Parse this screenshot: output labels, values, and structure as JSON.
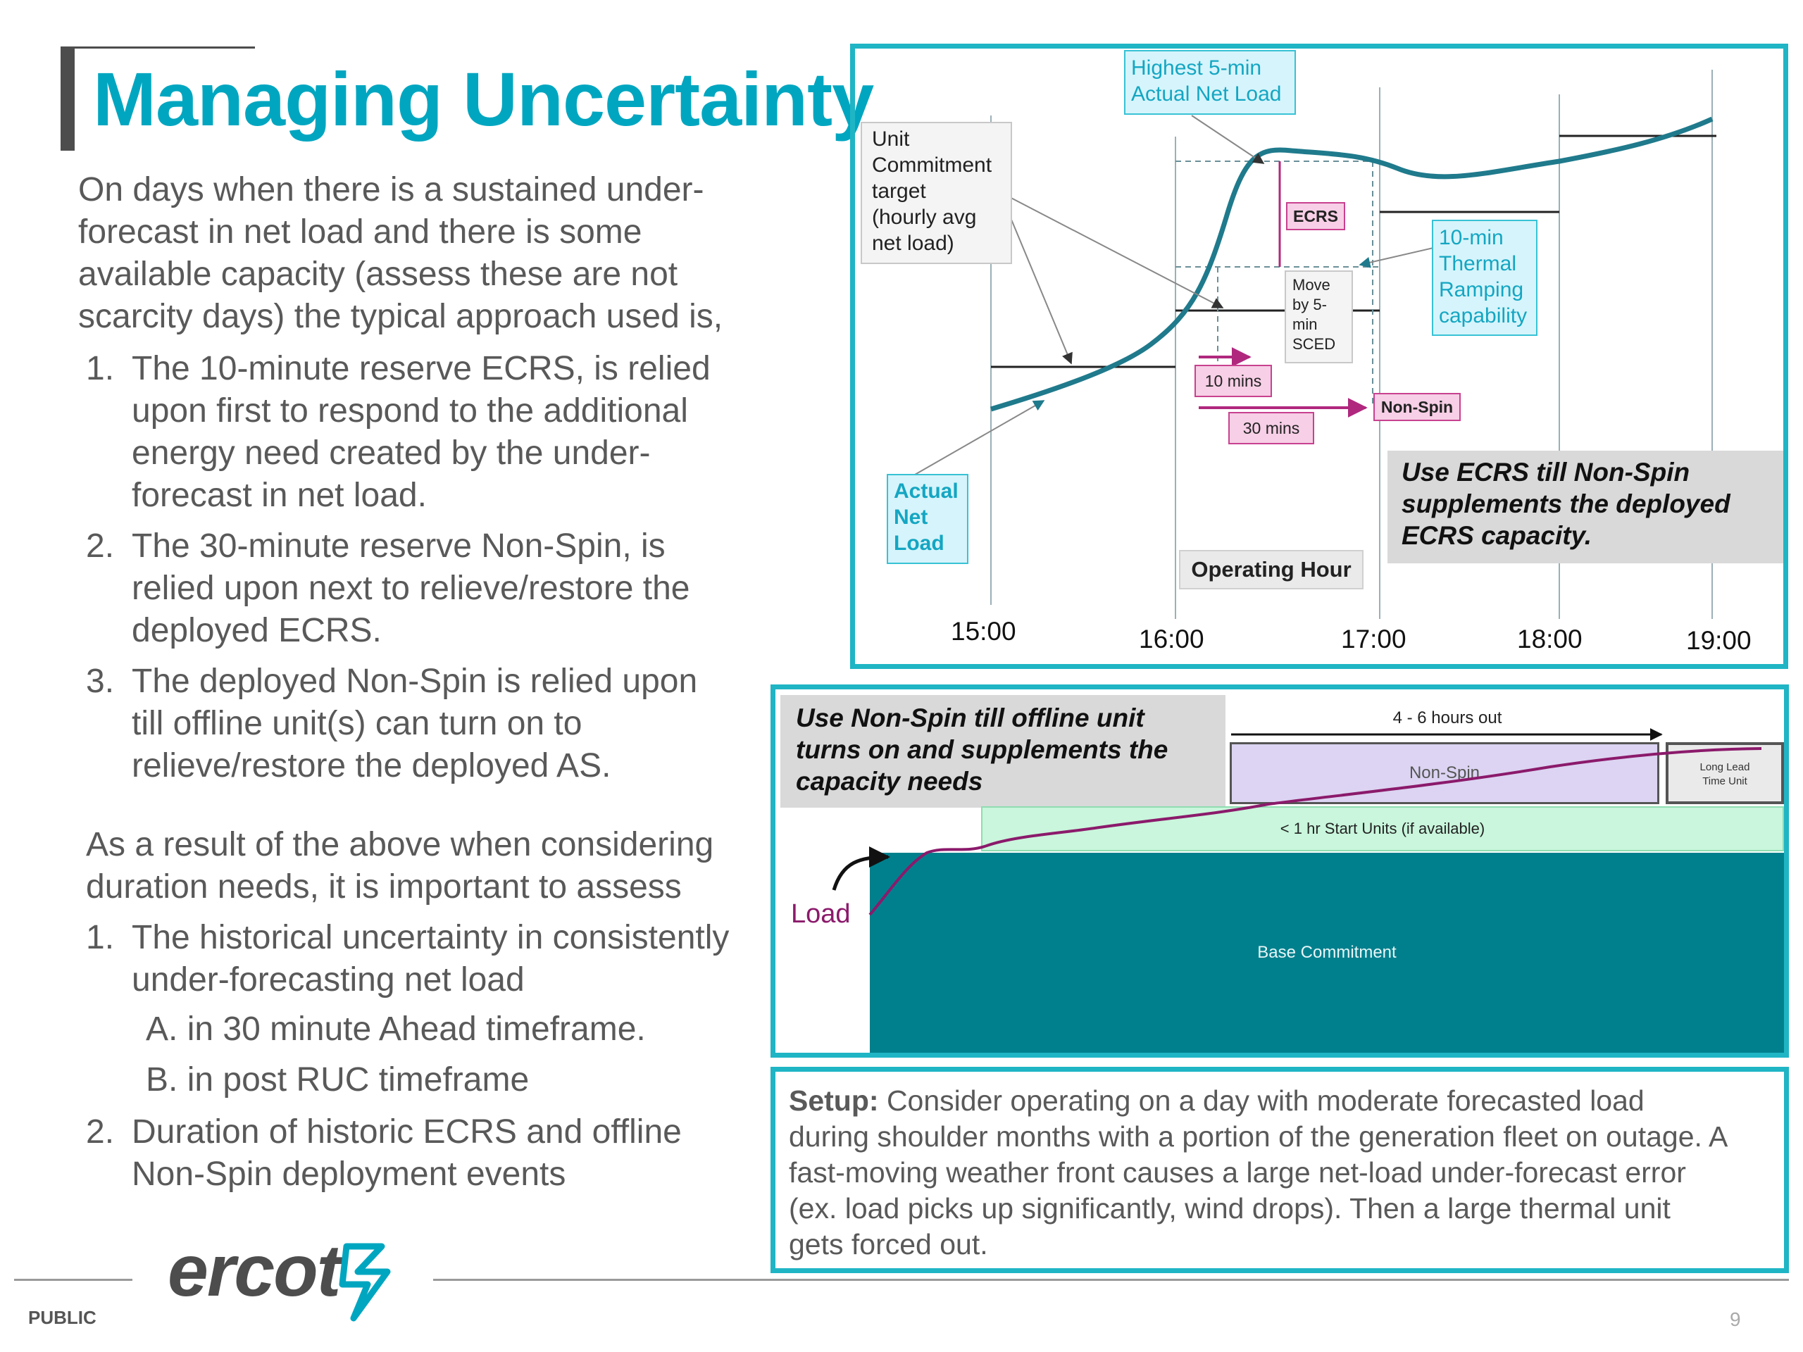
{
  "title": "Managing Uncertainty",
  "intro_lines": [
    "On days when there is a sustained under-",
    "forecast in net load and there is some",
    "available capacity (assess these are not",
    "scarcity days) the typical approach used is,"
  ],
  "list1": [
    {
      "num": "1.",
      "lines": [
        "The 10-minute reserve ECRS, is relied",
        "upon first to respond to the additional",
        "energy need created by the under-",
        "forecast in net load."
      ]
    },
    {
      "num": "2.",
      "lines": [
        "The 30-minute reserve Non-Spin, is",
        "relied upon next to relieve/restore the",
        "deployed ECRS."
      ]
    },
    {
      "num": "3.",
      "lines": [
        "The deployed Non-Spin is relied upon",
        "till offline unit(s) can turn on to",
        "relieve/restore the deployed AS."
      ]
    }
  ],
  "result_lines": [
    "As a result of the above when considering",
    "duration needs, it is important to assess"
  ],
  "list2_item1": {
    "num": "1.",
    "lines": [
      "The historical uncertainty in consistently",
      "under-forecasting net load"
    ]
  },
  "list2_sub": [
    {
      "num": "A.",
      "text": "in 30 minute Ahead timeframe."
    },
    {
      "num": "B.",
      "text": "in post RUC timeframe"
    }
  ],
  "list2_item2": {
    "num": "2.",
    "lines": [
      "Duration of historic ECRS and offline",
      "Non-Spin deployment events"
    ]
  },
  "top_chart": {
    "ticks": [
      "15:00",
      "16:00",
      "17:00",
      "18:00",
      "19:00"
    ],
    "labels": {
      "highest": [
        "Highest 5-min",
        "Actual Net Load"
      ],
      "unit_commitment": [
        "Unit",
        "Commitment",
        "target",
        "(hourly avg",
        "net load)"
      ],
      "ecrs": "ECRS",
      "thermal": [
        "10-min",
        "Thermal",
        "Ramping",
        "capability"
      ],
      "move": [
        "Move",
        "by 5-",
        "min",
        "SCED"
      ],
      "ten_mins": "10 mins",
      "thirty_mins": "30 mins",
      "non_spin": "Non-Spin",
      "actual": [
        "Actual",
        "Net",
        "Load"
      ],
      "operating_hour": "Operating Hour",
      "callout": [
        "Use ECRS till Non-Spin",
        "supplements the deployed",
        "ECRS capacity."
      ]
    },
    "colors": {
      "net_load": "#1f7a8c",
      "pink": "#c8418f",
      "border": "#1fb5c5"
    }
  },
  "mid_chart": {
    "callout": [
      "Use Non-Spin till offline unit",
      "turns on and supplements the",
      "capacity needs"
    ],
    "hours_out": "4 - 6 hours out",
    "non_spin": "Non-Spin",
    "long_lead": [
      "Long Lead",
      "Time Unit"
    ],
    "start_units": "< 1 hr Start Units (if available)",
    "load": "Load",
    "base": "Base Commitment",
    "colors": {
      "base": "#00808d",
      "start_units": "#c9f6dc",
      "non_spin": "#dcd4f2",
      "load_line": "#8b1a6b"
    }
  },
  "setup": {
    "bold": "Setup:",
    "lines": [
      " Consider operating on a day with moderate forecasted load",
      "during shoulder months with a portion of the generation fleet on outage. A",
      "fast-moving weather front causes a large net-load under-forecast error",
      "(ex. load picks up significantly, wind drops). Then a large thermal unit",
      "gets forced out."
    ]
  },
  "footer": {
    "logo": "ercot",
    "public": "PUBLIC",
    "page": "9"
  }
}
